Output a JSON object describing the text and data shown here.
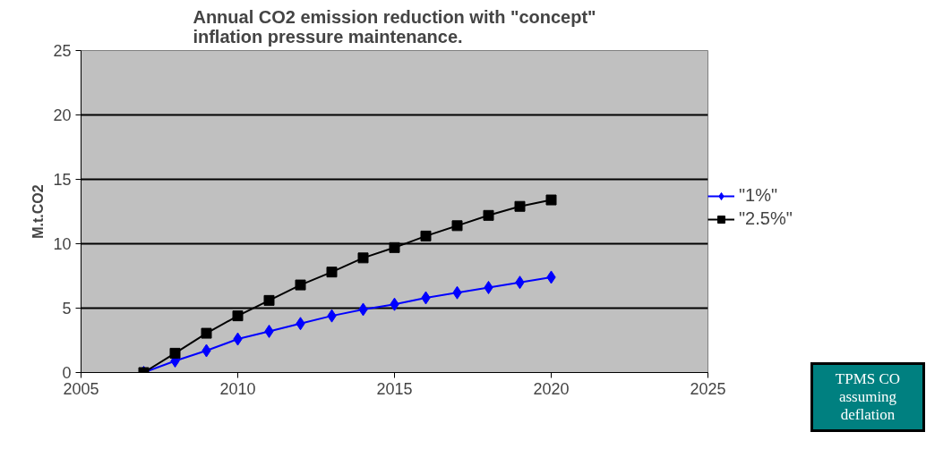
{
  "chart_data": {
    "type": "line",
    "title": "Annual CO2 emission reduction with \"concept\" inflation pressure maintenance.",
    "ylabel": "M.t.CO2",
    "x": [
      2007,
      2008,
      2009,
      2010,
      2011,
      2012,
      2013,
      2014,
      2015,
      2016,
      2017,
      2018,
      2019,
      2020
    ],
    "series": [
      {
        "name": "\"1%\"",
        "color": "#0000ff",
        "marker": "diamond",
        "values": [
          0,
          0.9,
          1.7,
          2.6,
          3.2,
          3.8,
          4.4,
          4.9,
          5.3,
          5.8,
          6.2,
          6.6,
          7.0,
          7.4
        ]
      },
      {
        "name": "\"2.5%\"",
        "color": "#000000",
        "marker": "square",
        "values": [
          0,
          1.5,
          3.05,
          4.4,
          5.6,
          6.8,
          7.8,
          8.9,
          9.7,
          10.6,
          11.4,
          12.2,
          12.9,
          13.4
        ]
      }
    ],
    "xlim": [
      2005,
      2025
    ],
    "xticks": [
      2005,
      2010,
      2015,
      2020,
      2025
    ],
    "ylim": [
      0,
      25
    ],
    "yticks": [
      0,
      5,
      10,
      15,
      20,
      25
    ],
    "grid": "y",
    "legend": "right",
    "line_style": "solid",
    "annotations": [
      "TPMS CO\nassuming\ndeflation"
    ]
  }
}
